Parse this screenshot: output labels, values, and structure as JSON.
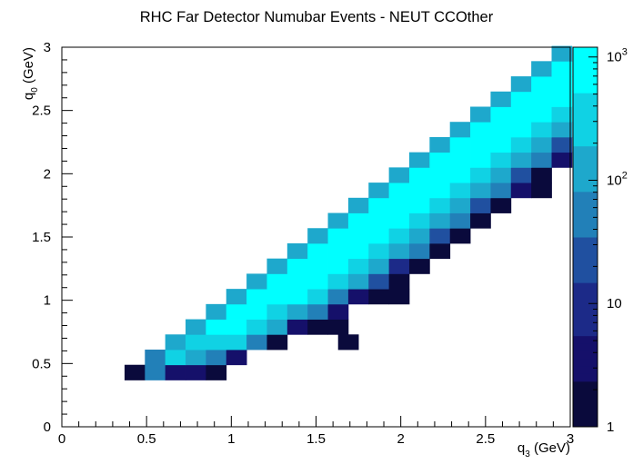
{
  "chart_data": {
    "type": "heatmap",
    "title": "RHC Far Detector Numubar Events - NEUT CCOther",
    "xlabel": {
      "main": "q",
      "sub": "3",
      "unit": " (GeV)"
    },
    "ylabel": {
      "main": "q",
      "sub": "0",
      "unit": " (GeV)"
    },
    "xlim": [
      0,
      3
    ],
    "ylim": [
      0,
      3
    ],
    "x_ticks": [
      {
        "value": 0,
        "label": "0"
      },
      {
        "value": 0.5,
        "label": "0.5"
      },
      {
        "value": 1,
        "label": "1"
      },
      {
        "value": 1.5,
        "label": "1.5"
      },
      {
        "value": 2,
        "label": "2"
      },
      {
        "value": 2.5,
        "label": "2.5"
      },
      {
        "value": 3,
        "label": "3"
      }
    ],
    "y_ticks": [
      {
        "value": 0,
        "label": "0"
      },
      {
        "value": 0.5,
        "label": "0.5"
      },
      {
        "value": 1,
        "label": "1"
      },
      {
        "value": 1.5,
        "label": "1.5"
      },
      {
        "value": 2,
        "label": "2"
      },
      {
        "value": 2.5,
        "label": "2.5"
      },
      {
        "value": 3,
        "label": "3"
      }
    ],
    "bin_width": 0.12,
    "z_scale": "log",
    "zlim": [
      1,
      1200
    ],
    "z_ticks": [
      {
        "value": 1,
        "label": "1"
      },
      {
        "value": 10,
        "label": "10"
      },
      {
        "value": 100,
        "base": "10",
        "exp": "2"
      },
      {
        "value": 1000,
        "base": "10",
        "exp": "3"
      }
    ],
    "palette": [
      "#0a0a3c",
      "#15106a",
      "#1c2a88",
      "#2050a0",
      "#2280b8",
      "#1ea8cc",
      "#10d2e4",
      "#00ffff"
    ],
    "bins": [
      [
        0.37,
        0.37,
        1.5
      ],
      [
        0.49,
        0.37,
        40
      ],
      [
        0.61,
        0.37,
        4
      ],
      [
        0.73,
        0.37,
        3
      ],
      [
        0.85,
        0.37,
        1.2
      ],
      [
        0.49,
        0.49,
        50
      ],
      [
        0.61,
        0.49,
        220
      ],
      [
        0.73,
        0.49,
        120
      ],
      [
        0.85,
        0.49,
        35
      ],
      [
        0.97,
        0.49,
        5
      ],
      [
        0.61,
        0.61,
        100
      ],
      [
        0.73,
        0.61,
        320
      ],
      [
        0.85,
        0.61,
        300
      ],
      [
        0.97,
        0.61,
        230
      ],
      [
        1.09,
        0.61,
        45
      ],
      [
        1.21,
        0.61,
        1
      ],
      [
        1.63,
        0.61,
        1
      ],
      [
        0.73,
        0.73,
        140
      ],
      [
        0.85,
        0.73,
        650
      ],
      [
        0.97,
        0.73,
        700
      ],
      [
        1.09,
        0.73,
        350
      ],
      [
        1.21,
        0.73,
        150
      ],
      [
        1.33,
        0.73,
        3
      ],
      [
        1.45,
        0.73,
        1.2
      ],
      [
        1.57,
        0.73,
        1.2
      ],
      [
        0.85,
        0.85,
        160
      ],
      [
        0.97,
        0.85,
        800
      ],
      [
        1.09,
        0.85,
        1000
      ],
      [
        1.21,
        0.85,
        450
      ],
      [
        1.33,
        0.85,
        200
      ],
      [
        1.45,
        0.85,
        40
      ],
      [
        1.57,
        0.85,
        5
      ],
      [
        0.97,
        0.97,
        150
      ],
      [
        1.09,
        0.97,
        800
      ],
      [
        1.21,
        0.97,
        1000
      ],
      [
        1.33,
        0.97,
        700
      ],
      [
        1.45,
        0.97,
        250
      ],
      [
        1.57,
        0.97,
        70
      ],
      [
        1.69,
        0.97,
        4
      ],
      [
        1.81,
        0.97,
        1.2
      ],
      [
        1.93,
        0.97,
        1.2
      ],
      [
        1.09,
        1.09,
        130
      ],
      [
        1.21,
        1.09,
        800
      ],
      [
        1.33,
        1.09,
        1000
      ],
      [
        1.45,
        1.09,
        700
      ],
      [
        1.57,
        1.09,
        280
      ],
      [
        1.69,
        1.09,
        90
      ],
      [
        1.81,
        1.09,
        30
      ],
      [
        1.93,
        1.09,
        1.5
      ],
      [
        1.21,
        1.21,
        160
      ],
      [
        1.33,
        1.21,
        850
      ],
      [
        1.45,
        1.21,
        1000
      ],
      [
        1.57,
        1.21,
        600
      ],
      [
        1.69,
        1.21,
        320
      ],
      [
        1.81,
        1.21,
        140
      ],
      [
        1.93,
        1.21,
        6
      ],
      [
        2.05,
        1.21,
        2
      ],
      [
        1.33,
        1.33,
        150
      ],
      [
        1.45,
        1.33,
        900
      ],
      [
        1.57,
        1.33,
        1000
      ],
      [
        1.69,
        1.33,
        750
      ],
      [
        1.81,
        1.33,
        320
      ],
      [
        1.93,
        1.33,
        110
      ],
      [
        2.05,
        1.33,
        35
      ],
      [
        2.17,
        1.33,
        1.5
      ],
      [
        1.45,
        1.45,
        140
      ],
      [
        1.57,
        1.45,
        850
      ],
      [
        1.69,
        1.45,
        1000
      ],
      [
        1.81,
        1.45,
        800
      ],
      [
        1.93,
        1.45,
        300
      ],
      [
        2.05,
        1.45,
        150
      ],
      [
        2.17,
        1.45,
        30
      ],
      [
        2.29,
        1.45,
        2
      ],
      [
        1.57,
        1.57,
        130
      ],
      [
        1.69,
        1.57,
        850
      ],
      [
        1.81,
        1.57,
        1000
      ],
      [
        1.93,
        1.57,
        700
      ],
      [
        2.05,
        1.57,
        330
      ],
      [
        2.17,
        1.57,
        110
      ],
      [
        2.29,
        1.57,
        35
      ],
      [
        2.41,
        1.57,
        1.3
      ],
      [
        1.69,
        1.69,
        130
      ],
      [
        1.81,
        1.69,
        850
      ],
      [
        1.93,
        1.69,
        1000
      ],
      [
        2.05,
        1.69,
        800
      ],
      [
        2.17,
        1.69,
        300
      ],
      [
        2.29,
        1.69,
        140
      ],
      [
        2.41,
        1.69,
        28
      ],
      [
        2.53,
        1.69,
        2
      ],
      [
        1.81,
        1.81,
        140
      ],
      [
        1.93,
        1.81,
        900
      ],
      [
        2.05,
        1.81,
        1000
      ],
      [
        2.17,
        1.81,
        750
      ],
      [
        2.29,
        1.81,
        320
      ],
      [
        2.41,
        1.81,
        120
      ],
      [
        2.53,
        1.81,
        40
      ],
      [
        2.65,
        1.81,
        3
      ],
      [
        2.77,
        1.81,
        1.2
      ],
      [
        1.93,
        1.93,
        150
      ],
      [
        2.05,
        1.93,
        850
      ],
      [
        2.17,
        1.93,
        1000
      ],
      [
        2.29,
        1.93,
        800
      ],
      [
        2.41,
        1.93,
        300
      ],
      [
        2.53,
        1.93,
        150
      ],
      [
        2.65,
        1.93,
        25
      ],
      [
        2.77,
        1.93,
        2
      ],
      [
        2.05,
        2.05,
        140
      ],
      [
        2.17,
        2.05,
        900
      ],
      [
        2.29,
        2.05,
        1000
      ],
      [
        2.41,
        2.05,
        750
      ],
      [
        2.53,
        2.05,
        330
      ],
      [
        2.65,
        2.05,
        100
      ],
      [
        2.77,
        2.05,
        40
      ],
      [
        2.89,
        2.05,
        3
      ],
      [
        2.17,
        2.17,
        150
      ],
      [
        2.29,
        2.17,
        850
      ],
      [
        2.41,
        2.17,
        1000
      ],
      [
        2.53,
        2.17,
        800
      ],
      [
        2.65,
        2.17,
        300
      ],
      [
        2.77,
        2.17,
        150
      ],
      [
        2.89,
        2.17,
        25
      ],
      [
        2.29,
        2.29,
        140
      ],
      [
        2.41,
        2.29,
        900
      ],
      [
        2.53,
        2.29,
        1000
      ],
      [
        2.65,
        2.29,
        750
      ],
      [
        2.77,
        2.29,
        350
      ],
      [
        2.89,
        2.29,
        120
      ],
      [
        2.41,
        2.41,
        150
      ],
      [
        2.53,
        2.41,
        850
      ],
      [
        2.65,
        2.41,
        1000
      ],
      [
        2.77,
        2.41,
        800
      ],
      [
        2.89,
        2.41,
        330
      ],
      [
        2.53,
        2.53,
        140
      ],
      [
        2.65,
        2.53,
        900
      ],
      [
        2.77,
        2.53,
        1000
      ],
      [
        2.89,
        2.53,
        750
      ],
      [
        2.65,
        2.65,
        150
      ],
      [
        2.77,
        2.65,
        850
      ],
      [
        2.89,
        2.65,
        1000
      ],
      [
        2.77,
        2.77,
        140
      ],
      [
        2.89,
        2.77,
        900
      ],
      [
        2.89,
        2.89,
        150
      ]
    ]
  }
}
